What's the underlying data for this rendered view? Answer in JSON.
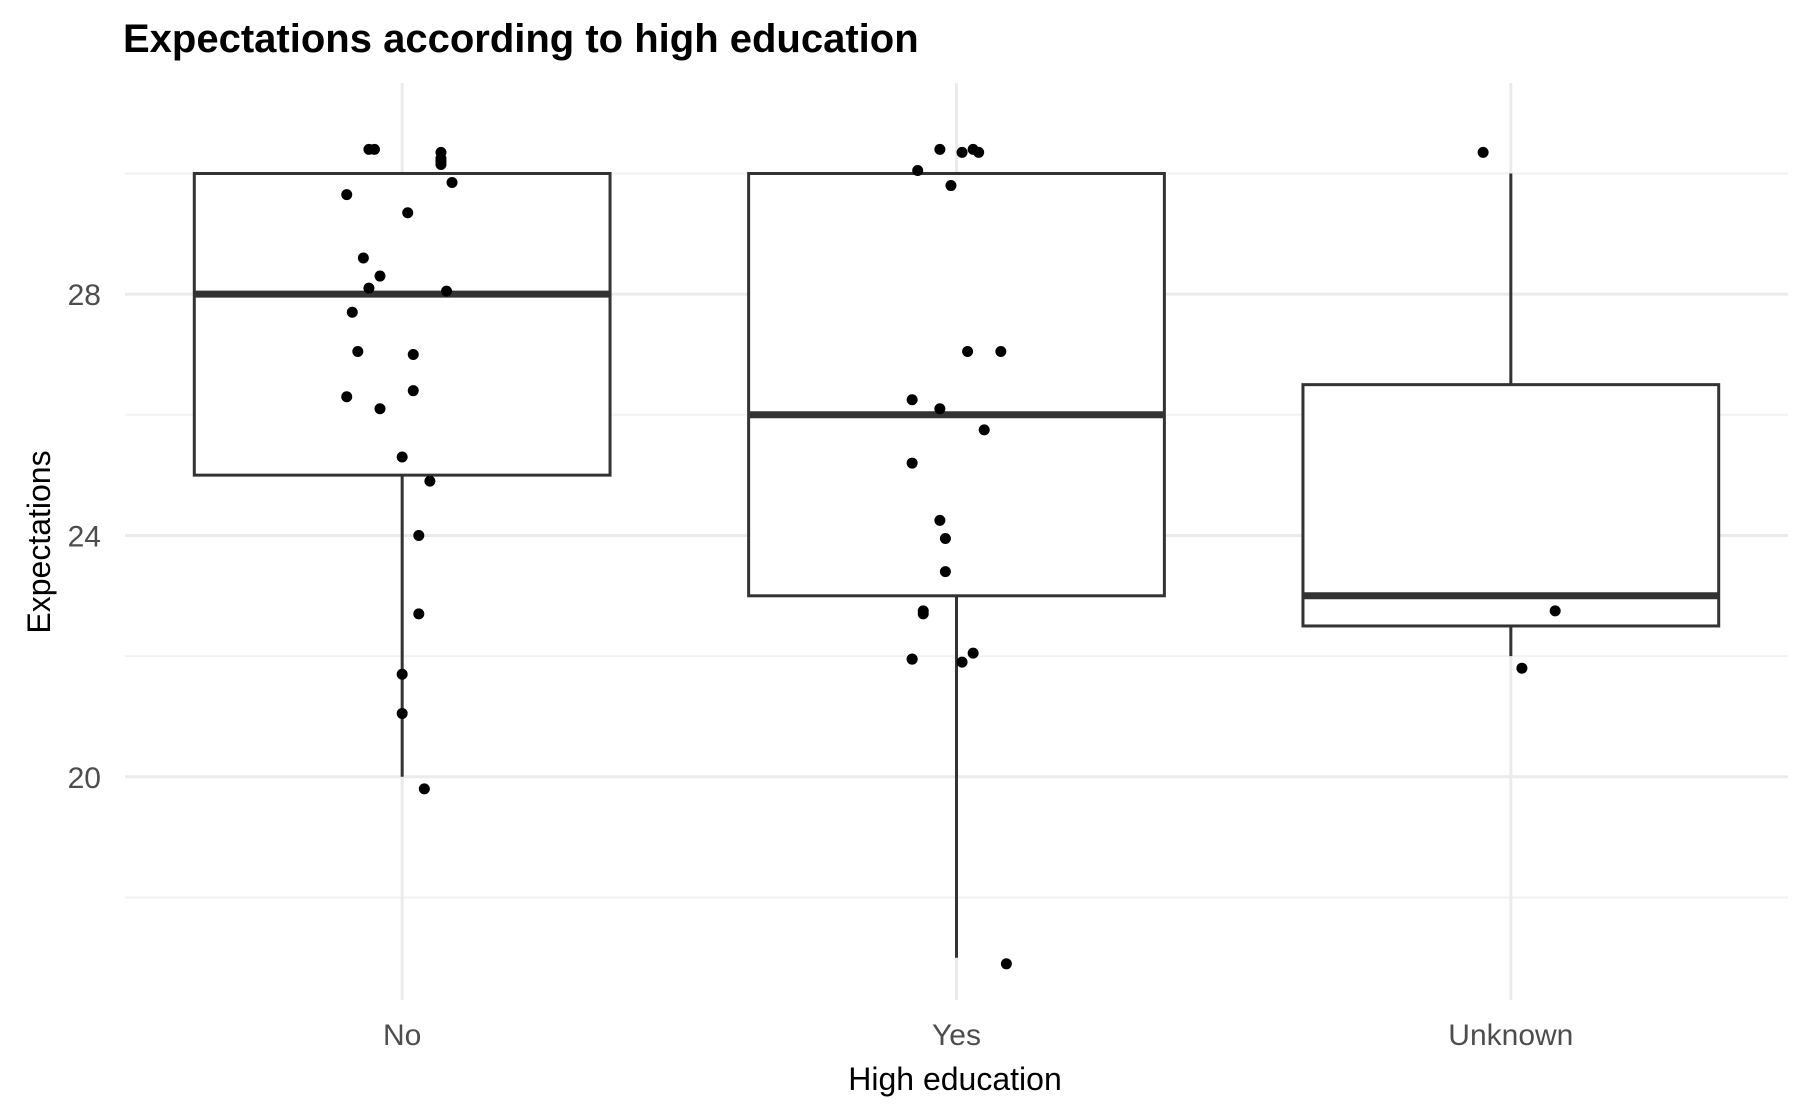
{
  "chart_data": {
    "type": "boxplot",
    "title": "Expectations according to high education",
    "xlabel": "High education",
    "ylabel": "Expectations",
    "categories": [
      "No",
      "Yes",
      "Unknown"
    ],
    "y_ticks": [
      20,
      24,
      28
    ],
    "y_tick_labels": [
      "20",
      "24",
      "28"
    ],
    "ylim": [
      16.3,
      31.5
    ],
    "grid": true,
    "boxes": [
      {
        "category": "No",
        "q1": 25.0,
        "median": 28.0,
        "q3": 30.0,
        "whisker_low": 20.0,
        "whisker_high": 30.0
      },
      {
        "category": "Yes",
        "q1": 23.0,
        "median": 26.0,
        "q3": 30.0,
        "whisker_low": 17.0,
        "whisker_high": 30.0
      },
      {
        "category": "Unknown",
        "q1": 22.5,
        "median": 23.0,
        "q3": 26.5,
        "whisker_low": 22.0,
        "whisker_high": 30.0
      }
    ],
    "points": [
      {
        "category": "No",
        "jitter": [
          -0.06,
          -0.05,
          0.07,
          0.07,
          0.07,
          0.07,
          0.09,
          -0.1,
          0.01,
          -0.07,
          -0.04,
          -0.06,
          0.08,
          -0.09,
          -0.08,
          0.02,
          -0.1,
          0.02,
          -0.04,
          0.0,
          0.05,
          0.03,
          0.03,
          0.0,
          0.0,
          0.04
        ],
        "values": [
          30.4,
          30.4,
          30.35,
          30.25,
          30.2,
          30.15,
          29.85,
          29.65,
          29.35,
          28.6,
          28.3,
          28.1,
          28.05,
          27.7,
          27.05,
          27.0,
          26.3,
          26.4,
          26.1,
          25.3,
          24.9,
          24.0,
          22.7,
          21.7,
          21.05,
          19.8
        ]
      },
      {
        "category": "Yes",
        "jitter": [
          -0.03,
          0.01,
          0.03,
          0.04,
          -0.07,
          -0.01,
          0.02,
          0.08,
          -0.08,
          -0.03,
          0.05,
          -0.08,
          -0.03,
          -0.02,
          -0.02,
          -0.06,
          -0.06,
          -0.08,
          -0.08,
          0.03,
          0.01,
          0.09
        ],
        "values": [
          30.4,
          30.35,
          30.4,
          30.35,
          30.05,
          29.8,
          27.05,
          27.05,
          26.25,
          26.1,
          25.75,
          25.2,
          24.25,
          23.95,
          23.4,
          22.75,
          22.7,
          21.95,
          21.95,
          22.05,
          21.9,
          16.9
        ]
      },
      {
        "category": "Unknown",
        "jitter": [
          -0.05,
          0.08,
          0.02
        ],
        "values": [
          30.35,
          22.75,
          21.8
        ]
      }
    ]
  }
}
